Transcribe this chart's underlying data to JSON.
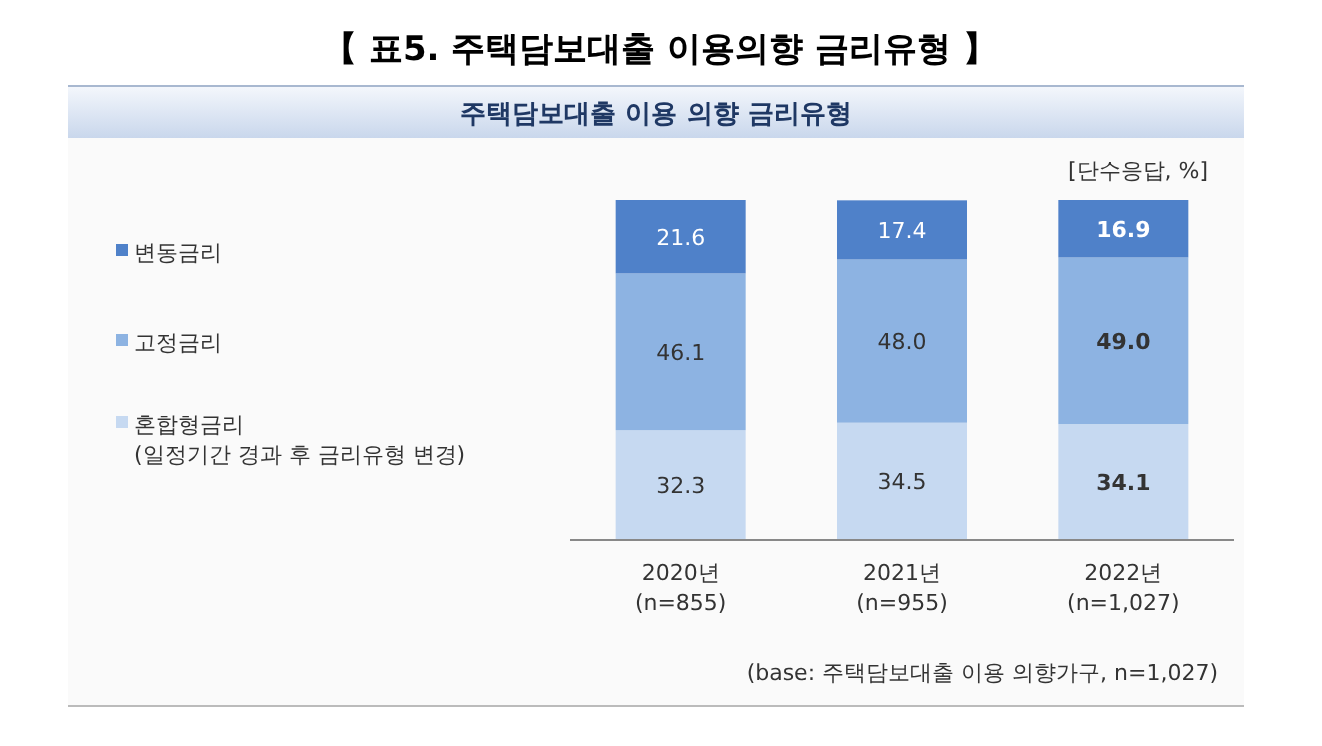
{
  "chart_data": {
    "type": "bar",
    "stacked": true,
    "title": "【 표5. 주택담보대출 이용의향 금리유형 】",
    "subtitle": "주택담보대출 이용 의향 금리유형",
    "categories": [
      "2020년\n(n=855)",
      "2021년\n(n=955)",
      "2022년\n(n=1,027)"
    ],
    "series": [
      {
        "name": "혼합형금리\n(일정기간 경과 후 금리유형 변경)",
        "color": "#c6d9f1",
        "values": [
          32.3,
          34.5,
          34.1
        ],
        "value_labels": [
          "32.3",
          "34.5",
          "34.1"
        ]
      },
      {
        "name": "고정금리",
        "color": "#8db3e2",
        "values": [
          46.1,
          48.0,
          49.0
        ],
        "value_labels": [
          "46.1",
          "48.0",
          "49.0"
        ]
      },
      {
        "name": "변동금리",
        "color": "#4f81c9",
        "values": [
          21.6,
          17.4,
          16.9
        ],
        "value_labels": [
          "21.6",
          "17.4",
          "16.9"
        ]
      }
    ],
    "legend": "left",
    "annotations": [
      "[단수응답, %]",
      "(base: 주택담보대출 이용 의향가구, n=1,027)"
    ]
  }
}
